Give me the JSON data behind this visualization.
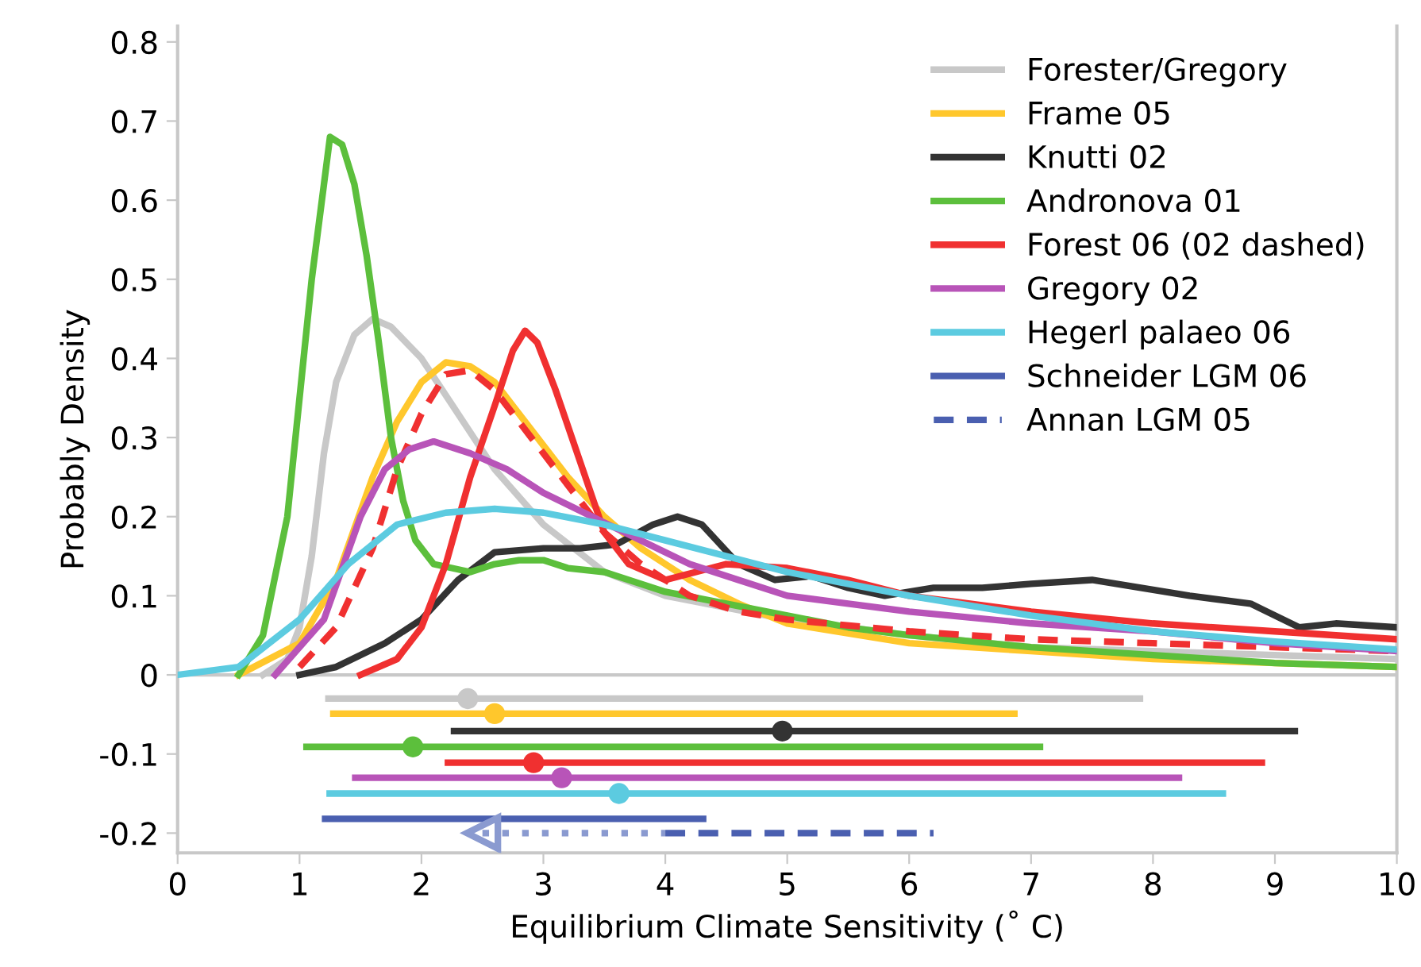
{
  "chart_data": {
    "type": "line",
    "xlabel": "Equilibrium Climate Sensitivity (˚ C)",
    "ylabel": "Probably Density",
    "xlim": [
      0,
      10
    ],
    "ylim": [
      -0.225,
      0.82
    ],
    "xticks": [
      0,
      1,
      2,
      3,
      4,
      5,
      6,
      7,
      8,
      9,
      10
    ],
    "yticks": [
      0.8,
      0.7,
      0.6,
      0.5,
      0.4,
      0.3,
      0.2,
      0.1,
      0,
      -0.1,
      -0.2
    ],
    "grid": false,
    "legend": "top right",
    "marker": "none",
    "ref_lines": [
      {
        "axis": "y",
        "value": 0,
        "color": "#c8c8c8"
      }
    ],
    "series": [
      {
        "name": "Forester/Gregory",
        "color": "#c8c8c8",
        "x": [
          0.7,
          0.9,
          1.0,
          1.1,
          1.2,
          1.3,
          1.45,
          1.6,
          1.75,
          2.0,
          2.3,
          2.6,
          3.0,
          3.5,
          4.0,
          5,
          6,
          7,
          8,
          9,
          10
        ],
        "values": [
          0,
          0.02,
          0.06,
          0.15,
          0.28,
          0.37,
          0.43,
          0.45,
          0.44,
          0.4,
          0.33,
          0.26,
          0.19,
          0.13,
          0.1,
          0.07,
          0.05,
          0.035,
          0.03,
          0.025,
          0.02
        ]
      },
      {
        "name": "Frame 05",
        "color": "#ffc72c",
        "x": [
          0.5,
          1.0,
          1.3,
          1.6,
          1.8,
          2.0,
          2.2,
          2.4,
          2.6,
          2.9,
          3.2,
          3.5,
          3.8,
          4.2,
          4.6,
          5,
          6,
          7,
          8,
          9,
          10
        ],
        "values": [
          0,
          0.04,
          0.12,
          0.25,
          0.32,
          0.37,
          0.395,
          0.39,
          0.37,
          0.31,
          0.25,
          0.2,
          0.16,
          0.12,
          0.09,
          0.065,
          0.04,
          0.03,
          0.02,
          0.015,
          0.01
        ]
      },
      {
        "name": "Knutti 02",
        "color": "#333333",
        "x": [
          1.0,
          1.3,
          1.7,
          2.0,
          2.3,
          2.6,
          3.0,
          3.3,
          3.6,
          3.9,
          4.1,
          4.3,
          4.6,
          4.9,
          5.2,
          5.5,
          5.8,
          6.2,
          6.6,
          7.0,
          7.5,
          7.9,
          8.3,
          8.8,
          9.2,
          9.5,
          10
        ],
        "values": [
          0,
          0.01,
          0.04,
          0.07,
          0.12,
          0.155,
          0.16,
          0.16,
          0.165,
          0.19,
          0.2,
          0.19,
          0.14,
          0.12,
          0.125,
          0.11,
          0.1,
          0.11,
          0.11,
          0.115,
          0.12,
          0.11,
          0.1,
          0.09,
          0.06,
          0.065,
          0.06
        ]
      },
      {
        "name": "Andronova 01",
        "color": "#5cbf3c",
        "x": [
          0.5,
          0.7,
          0.9,
          1.0,
          1.1,
          1.2,
          1.25,
          1.35,
          1.45,
          1.55,
          1.65,
          1.75,
          1.85,
          1.95,
          2.1,
          2.4,
          2.6,
          2.8,
          3.0,
          3.2,
          3.5,
          4.0,
          4.5,
          5,
          5.5,
          6,
          7,
          8,
          9,
          10
        ],
        "values": [
          0,
          0.05,
          0.2,
          0.35,
          0.5,
          0.62,
          0.68,
          0.67,
          0.62,
          0.53,
          0.42,
          0.3,
          0.22,
          0.17,
          0.14,
          0.13,
          0.14,
          0.145,
          0.145,
          0.135,
          0.13,
          0.105,
          0.09,
          0.075,
          0.06,
          0.05,
          0.035,
          0.025,
          0.015,
          0.01
        ]
      },
      {
        "name": "Forest 06 (02 dashed)",
        "color": "#f03030",
        "x": [
          1.5,
          1.8,
          2.0,
          2.2,
          2.4,
          2.6,
          2.75,
          2.85,
          2.95,
          3.1,
          3.3,
          3.5,
          3.7,
          4.0,
          4.5,
          5.0,
          5.5,
          6,
          7,
          8,
          9,
          10
        ],
        "values": [
          0,
          0.02,
          0.06,
          0.14,
          0.25,
          0.34,
          0.41,
          0.435,
          0.42,
          0.36,
          0.27,
          0.18,
          0.14,
          0.12,
          0.14,
          0.135,
          0.12,
          0.1,
          0.08,
          0.065,
          0.055,
          0.045
        ]
      },
      {
        "color": "#f03030",
        "line_style": "dashed",
        "x": [
          1.0,
          1.3,
          1.6,
          1.8,
          2.0,
          2.2,
          2.4,
          2.6,
          2.9,
          3.2,
          3.5,
          3.8,
          4.2,
          4.6,
          5,
          6,
          7,
          8,
          9,
          10
        ],
        "values": [
          0.01,
          0.06,
          0.16,
          0.26,
          0.33,
          0.38,
          0.385,
          0.36,
          0.3,
          0.24,
          0.18,
          0.14,
          0.1,
          0.08,
          0.07,
          0.055,
          0.045,
          0.04,
          0.035,
          0.03
        ]
      },
      {
        "name": "Gregory 02",
        "color": "#b854b8",
        "x": [
          0.8,
          1.2,
          1.5,
          1.7,
          1.9,
          2.1,
          2.4,
          2.7,
          3.0,
          3.4,
          3.8,
          4.2,
          4.6,
          5,
          5.5,
          6,
          7,
          8,
          9,
          10
        ],
        "values": [
          0,
          0.07,
          0.2,
          0.26,
          0.285,
          0.295,
          0.28,
          0.26,
          0.23,
          0.2,
          0.17,
          0.14,
          0.12,
          0.1,
          0.09,
          0.08,
          0.065,
          0.055,
          0.04,
          0.03
        ]
      },
      {
        "name": "Hegerl palaeo 06",
        "color": "#5ccbe0",
        "x": [
          0,
          0.5,
          1.0,
          1.4,
          1.8,
          2.2,
          2.6,
          3.0,
          3.5,
          4.0,
          4.5,
          5,
          6,
          7,
          8,
          9,
          10
        ],
        "values": [
          0,
          0.01,
          0.07,
          0.14,
          0.19,
          0.205,
          0.21,
          0.205,
          0.19,
          0.17,
          0.15,
          0.13,
          0.1,
          0.075,
          0.055,
          0.042,
          0.032
        ]
      },
      {
        "name": "Schneider LGM 06",
        "color": "#4a5fb0",
        "x": [
          1.21,
          4.31
        ],
        "values": [
          -0.182,
          -0.182
        ]
      },
      {
        "color": "#8a9ad0",
        "line_style": "dotted",
        "marker": "triangle",
        "x": [
          2.5,
          4.0
        ],
        "values": [
          -0.2,
          -0.2
        ]
      },
      {
        "name": "Annan LGM 05",
        "color": "#4a5fb0",
        "line_style": "dashed",
        "x": [
          4.0,
          6.2
        ],
        "values": [
          -0.2,
          -0.2
        ]
      },
      {
        "type": "scatter",
        "marker": "circle",
        "color": "#c8c8c8",
        "x": [
          2.38
        ],
        "values": [
          -0.03
        ],
        "xerrors": [
          [
            1.21,
            7.92
          ]
        ]
      },
      {
        "type": "scatter",
        "marker": "circle",
        "color": "#ffc72c",
        "x": [
          2.6
        ],
        "values": [
          -0.049
        ],
        "xerrors": [
          [
            1.25,
            6.89
          ]
        ]
      },
      {
        "type": "scatter",
        "marker": "circle",
        "color": "#333333",
        "x": [
          4.96
        ],
        "values": [
          -0.071
        ],
        "xerrors": [
          [
            2.24,
            9.19
          ]
        ]
      },
      {
        "type": "scatter",
        "marker": "circle",
        "color": "#5cbf3c",
        "x": [
          1.93
        ],
        "values": [
          -0.091
        ],
        "xerrors": [
          [
            1.03,
            7.1
          ]
        ]
      },
      {
        "type": "scatter",
        "marker": "circle",
        "color": "#f03030",
        "x": [
          2.92
        ],
        "values": [
          -0.111
        ],
        "xerrors": [
          [
            2.19,
            8.92
          ]
        ]
      },
      {
        "type": "scatter",
        "marker": "circle",
        "color": "#b854b8",
        "x": [
          3.15
        ],
        "values": [
          -0.13
        ],
        "xerrors": [
          [
            1.43,
            8.24
          ]
        ]
      },
      {
        "type": "scatter",
        "marker": "circle",
        "color": "#5ccbe0",
        "x": [
          3.62
        ],
        "values": [
          -0.15
        ],
        "xerrors": [
          [
            1.22,
            8.6
          ]
        ]
      }
    ]
  }
}
